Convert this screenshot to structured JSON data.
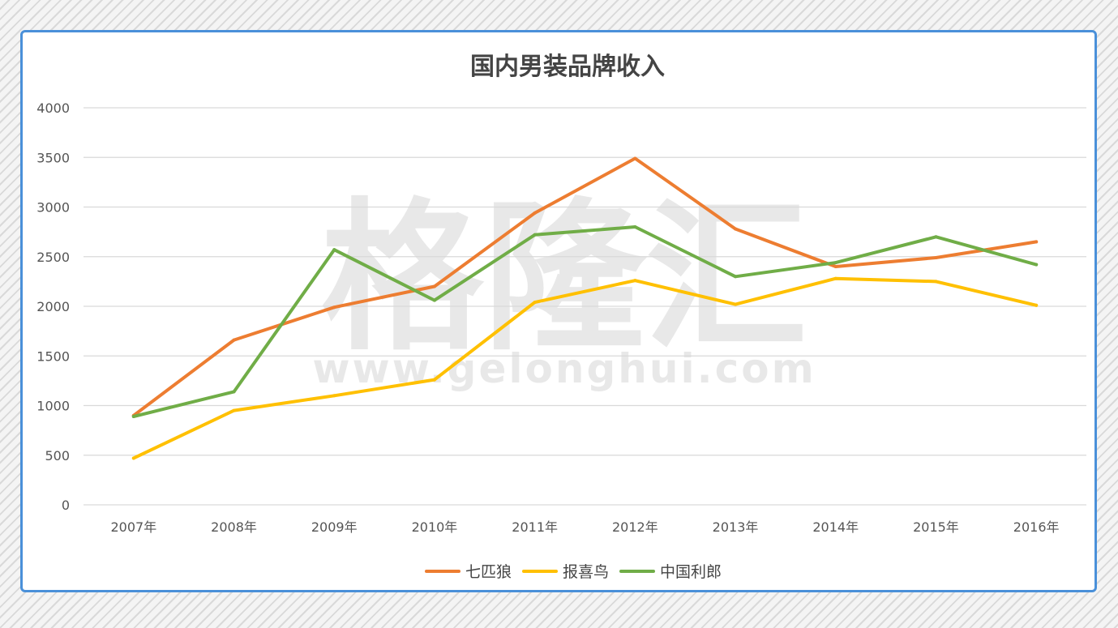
{
  "chart_data": {
    "type": "line",
    "title": "国内男装品牌收入",
    "xlabel": "",
    "ylabel": "",
    "categories": [
      "2007年",
      "2008年",
      "2009年",
      "2010年",
      "2011年",
      "2012年",
      "2013年",
      "2014年",
      "2015年",
      "2016年"
    ],
    "ylim": [
      0,
      4000
    ],
    "yticks": [
      0,
      500,
      1000,
      1500,
      2000,
      2500,
      3000,
      3500,
      4000
    ],
    "grid": true,
    "legend_position": "bottom",
    "series": [
      {
        "name": "七匹狼",
        "color": "#ed7d31",
        "values": [
          900,
          1660,
          1990,
          2200,
          2940,
          3490,
          2780,
          2400,
          2490,
          2650
        ]
      },
      {
        "name": "报喜鸟",
        "color": "#ffc000",
        "values": [
          470,
          950,
          1100,
          1260,
          2040,
          2260,
          2020,
          2280,
          2250,
          2010
        ]
      },
      {
        "name": "中国利郎",
        "color": "#70ad47",
        "values": [
          890,
          1140,
          2570,
          2060,
          2720,
          2800,
          2300,
          2440,
          2700,
          2420
        ]
      }
    ]
  },
  "watermark": {
    "logo": "格隆汇",
    "url": "www.gelonghui.com"
  }
}
